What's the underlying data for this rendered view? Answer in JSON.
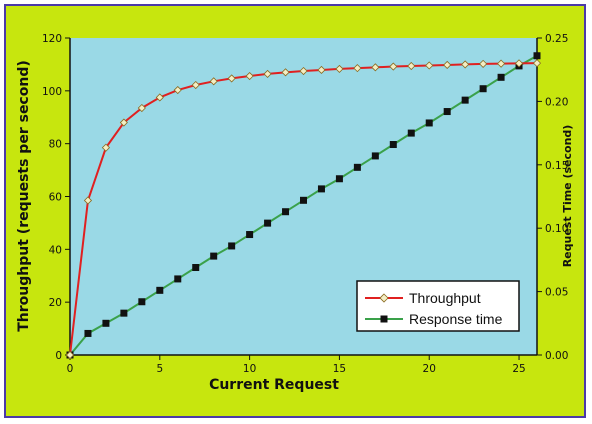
{
  "chart_data": {
    "type": "line",
    "xlabel": "Current Request",
    "ylabel_left": "Throughput (requests per second)",
    "ylabel_right": "Request Time (second)",
    "xlim": [
      0,
      26
    ],
    "ylim_left": [
      0,
      120
    ],
    "ylim_right": [
      0,
      0.25
    ],
    "x_ticks": [
      0,
      5,
      10,
      15,
      20,
      25
    ],
    "y_left_ticks": [
      0,
      20,
      40,
      60,
      80,
      100,
      120
    ],
    "y_right_ticks": [
      "0.00",
      "0.05",
      "0.10",
      "0.15",
      "0.20",
      "0.25"
    ],
    "legend_position": "bottom-right",
    "colors": {
      "outer_background": "#c7e60e",
      "plot_background": "#9ad9e6",
      "border": "#4b3aa8",
      "throughput_line": "#e02020",
      "throughput_marker_fill": "#f3eec4",
      "response_line": "#3aa14a",
      "response_marker": "#111111"
    },
    "series": [
      {
        "name": "Throughput",
        "axis": "left",
        "marker": "diamond",
        "x": [
          0,
          1,
          2,
          3,
          4,
          5,
          6,
          7,
          8,
          9,
          10,
          11,
          12,
          13,
          14,
          15,
          16,
          17,
          18,
          19,
          20,
          21,
          22,
          23,
          24,
          25,
          26
        ],
        "y": [
          0,
          58.5,
          78.5,
          88,
          93.5,
          97.5,
          100.3,
          102.2,
          103.6,
          104.7,
          105.6,
          106.4,
          107,
          107.5,
          107.9,
          108.3,
          108.6,
          108.9,
          109.2,
          109.4,
          109.6,
          109.8,
          110,
          110.2,
          110.3,
          110.4,
          110.5
        ]
      },
      {
        "name": "Response time",
        "axis": "right",
        "marker": "square",
        "x": [
          0,
          1,
          2,
          3,
          4,
          5,
          6,
          7,
          8,
          9,
          10,
          11,
          12,
          13,
          14,
          15,
          16,
          17,
          18,
          19,
          20,
          21,
          22,
          23,
          24,
          25,
          26
        ],
        "y": [
          0,
          0.017,
          0.025,
          0.033,
          0.042,
          0.051,
          0.06,
          0.069,
          0.078,
          0.086,
          0.095,
          0.104,
          0.113,
          0.122,
          0.131,
          0.139,
          0.148,
          0.157,
          0.166,
          0.175,
          0.183,
          0.192,
          0.201,
          0.21,
          0.219,
          0.228,
          0.236
        ]
      }
    ]
  }
}
